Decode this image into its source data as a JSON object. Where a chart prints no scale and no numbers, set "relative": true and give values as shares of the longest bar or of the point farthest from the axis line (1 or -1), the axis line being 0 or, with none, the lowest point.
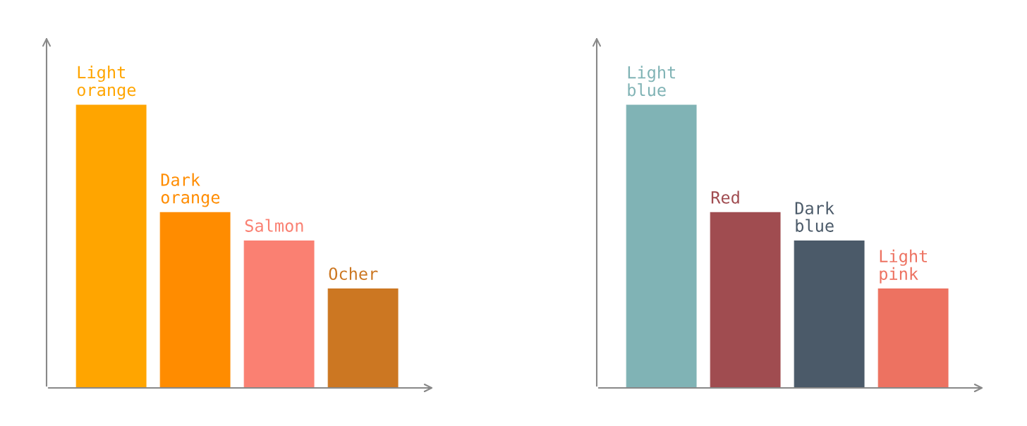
{
  "chart_data": [
    {
      "type": "bar",
      "relative": true,
      "categories": [
        "Light\norange",
        "Dark\norange",
        "Salmon",
        "Ocher"
      ],
      "values": [
        1,
        0.62,
        0.52,
        0.35
      ],
      "colors": [
        "#ffa500",
        "#ff8c00",
        "#fa8072",
        "#cc7722"
      ]
    },
    {
      "type": "bar",
      "relative": true,
      "categories": [
        "Light\nblue",
        "Red",
        "Dark\nblue",
        "Light\npink"
      ],
      "values": [
        1,
        0.62,
        0.52,
        0.35
      ],
      "colors": [
        "#80b3b5",
        "#a04c50",
        "#4b5a69",
        "#ed7261"
      ]
    }
  ]
}
